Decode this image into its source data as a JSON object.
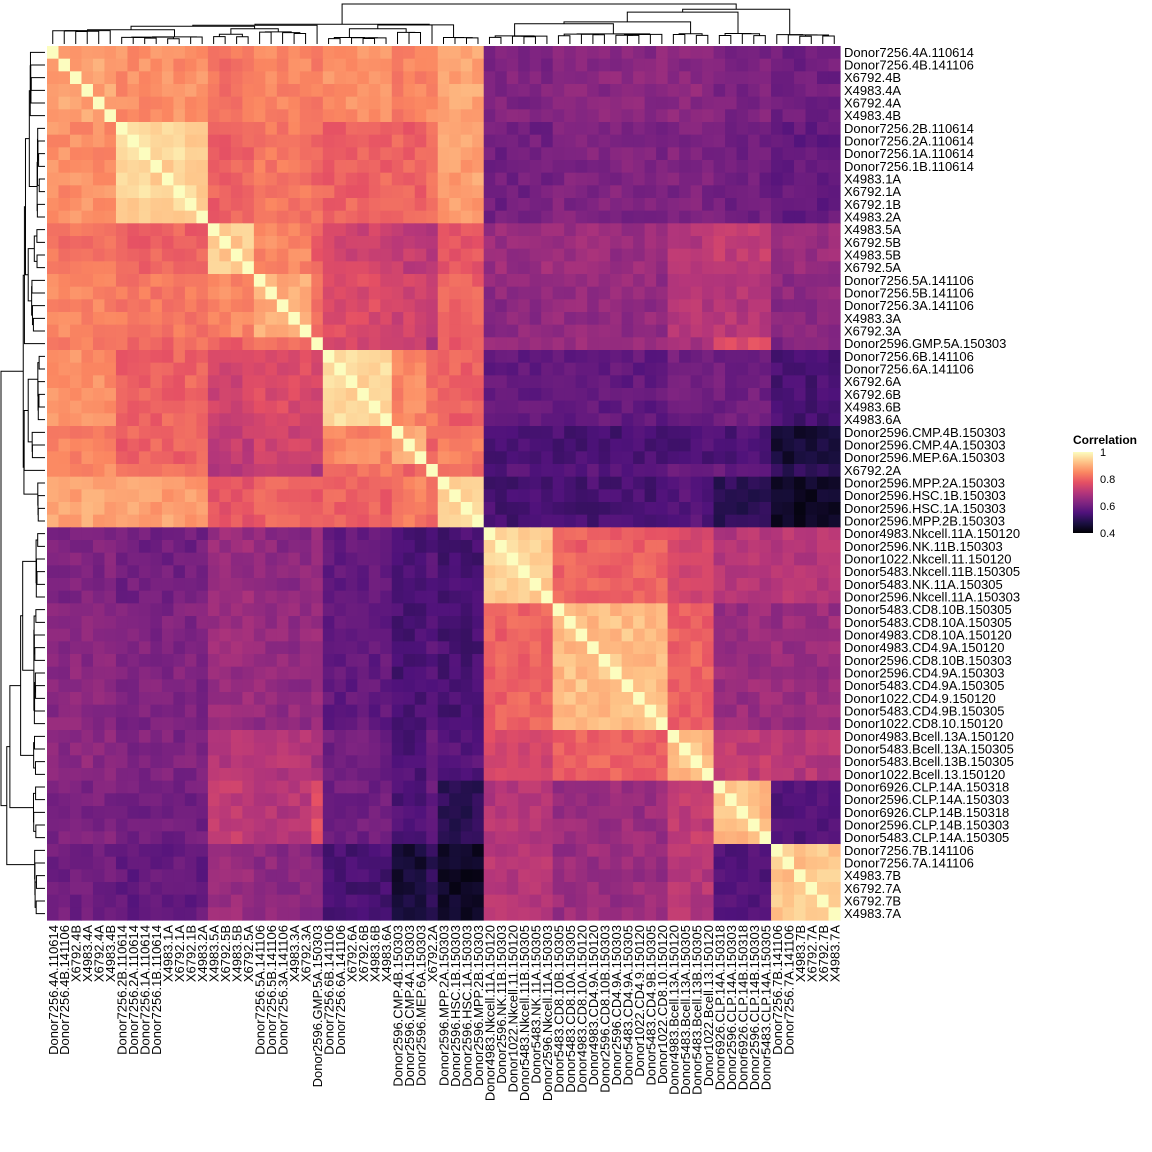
{
  "chart_data": {
    "type": "heatmap",
    "title": "",
    "xlabel": "",
    "ylabel": "",
    "labels": [
      "Donor7256.4A.110614",
      "Donor7256.4B.141106",
      "X6792.4B",
      "X4983.4A",
      "X6792.4A",
      "X4983.4B",
      "Donor7256.2B.110614",
      "Donor7256.2A.110614",
      "Donor7256.1A.110614",
      "Donor7256.1B.110614",
      "X4983.1A",
      "X6792.1A",
      "X6792.1B",
      "X4983.2A",
      "X4983.5A",
      "X6792.5B",
      "X4983.5B",
      "X6792.5A",
      "Donor7256.5A.141106",
      "Donor7256.5B.141106",
      "Donor7256.3A.141106",
      "X4983.3A",
      "X6792.3A",
      "Donor2596.GMP.5A.150303",
      "Donor7256.6B.141106",
      "Donor7256.6A.141106",
      "X6792.6A",
      "X6792.6B",
      "X4983.6B",
      "X4983.6A",
      "Donor2596.CMP.4B.150303",
      "Donor2596.CMP.4A.150303",
      "Donor2596.MEP.6A.150303",
      "X6792.2A",
      "Donor2596.MPP.2A.150303",
      "Donor2596.HSC.1B.150303",
      "Donor2596.HSC.1A.150303",
      "Donor2596.MPP.2B.150303",
      "Donor4983.Nkcell.11A.150120",
      "Donor2596.NK.11B.150303",
      "Donor1022.Nkcell.11.150120",
      "Donor5483.Nkcell.11B.150305",
      "Donor5483.NK.11A.150305",
      "Donor2596.Nkcell.11A.150303",
      "Donor5483.CD8.10B.150305",
      "Donor5483.CD8.10A.150305",
      "Donor4983.CD8.10A.150120",
      "Donor4983.CD4.9A.150120",
      "Donor2596.CD8.10B.150303",
      "Donor2596.CD4.9A.150303",
      "Donor5483.CD4.9A.150305",
      "Donor1022.CD4.9.150120",
      "Donor5483.CD4.9B.150305",
      "Donor1022.CD8.10.150120",
      "Donor4983.Bcell.13A.150120",
      "Donor5483.Bcell.13A.150305",
      "Donor5483.Bcell.13B.150305",
      "Donor1022.Bcell.13.150120",
      "Donor6926.CLP.14A.150318",
      "Donor2596.CLP.14A.150303",
      "Donor6926.CLP.14B.150318",
      "Donor2596.CLP.14B.150303",
      "Donor5483.CLP.14A.150305",
      "Donor7256.7B.141106",
      "Donor7256.7A.141106",
      "X4983.7B",
      "X6792.7A",
      "X6792.7B",
      "X4983.7A"
    ],
    "groups": [
      {
        "start": 0,
        "end": 5,
        "within": 0.89
      },
      {
        "start": 6,
        "end": 13,
        "within": 0.95
      },
      {
        "start": 14,
        "end": 17,
        "within": 0.93
      },
      {
        "start": 18,
        "end": 22,
        "within": 0.9
      },
      {
        "start": 23,
        "end": 23,
        "within": 0.9
      },
      {
        "start": 24,
        "end": 29,
        "within": 0.95
      },
      {
        "start": 30,
        "end": 32,
        "within": 0.9
      },
      {
        "start": 33,
        "end": 33,
        "within": 0.9
      },
      {
        "start": 34,
        "end": 37,
        "within": 0.95
      },
      {
        "start": 38,
        "end": 43,
        "within": 0.94
      },
      {
        "start": 44,
        "end": 53,
        "within": 0.92
      },
      {
        "start": 54,
        "end": 57,
        "within": 0.92
      },
      {
        "start": 58,
        "end": 62,
        "within": 0.92
      },
      {
        "start": 63,
        "end": 68,
        "within": 0.93
      }
    ],
    "group_correlations": [
      [
        0,
        1,
        0.86
      ],
      [
        0,
        2,
        0.82
      ],
      [
        0,
        3,
        0.85
      ],
      [
        0,
        4,
        0.83
      ],
      [
        0,
        5,
        0.86
      ],
      [
        0,
        6,
        0.84
      ],
      [
        0,
        7,
        0.85
      ],
      [
        0,
        8,
        0.89
      ],
      [
        1,
        2,
        0.8
      ],
      [
        1,
        3,
        0.83
      ],
      [
        1,
        4,
        0.81
      ],
      [
        1,
        5,
        0.8
      ],
      [
        1,
        6,
        0.8
      ],
      [
        1,
        7,
        0.82
      ],
      [
        1,
        8,
        0.88
      ],
      [
        2,
        3,
        0.85
      ],
      [
        2,
        4,
        0.8
      ],
      [
        2,
        5,
        0.74
      ],
      [
        2,
        6,
        0.72
      ],
      [
        2,
        7,
        0.7
      ],
      [
        2,
        8,
        0.78
      ],
      [
        3,
        4,
        0.82
      ],
      [
        3,
        5,
        0.76
      ],
      [
        3,
        6,
        0.74
      ],
      [
        3,
        7,
        0.72
      ],
      [
        3,
        8,
        0.8
      ],
      [
        4,
        5,
        0.74
      ],
      [
        4,
        6,
        0.72
      ],
      [
        4,
        7,
        0.7
      ],
      [
        4,
        8,
        0.78
      ],
      [
        5,
        6,
        0.85
      ],
      [
        5,
        7,
        0.82
      ],
      [
        5,
        8,
        0.8
      ],
      [
        6,
        7,
        0.8
      ],
      [
        6,
        8,
        0.84
      ],
      [
        7,
        8,
        0.8
      ],
      [
        9,
        10,
        0.8
      ],
      [
        9,
        11,
        0.75
      ],
      [
        9,
        12,
        0.7
      ],
      [
        10,
        11,
        0.8
      ],
      [
        10,
        12,
        0.66
      ],
      [
        11,
        12,
        0.72
      ],
      [
        0,
        9,
        0.62
      ],
      [
        1,
        9,
        0.6
      ],
      [
        2,
        9,
        0.66
      ],
      [
        3,
        9,
        0.64
      ],
      [
        4,
        9,
        0.66
      ],
      [
        5,
        9,
        0.58
      ],
      [
        6,
        9,
        0.54
      ],
      [
        7,
        9,
        0.56
      ],
      [
        8,
        9,
        0.54
      ],
      [
        0,
        10,
        0.64
      ],
      [
        1,
        10,
        0.62
      ],
      [
        2,
        10,
        0.66
      ],
      [
        3,
        10,
        0.65
      ],
      [
        4,
        10,
        0.66
      ],
      [
        5,
        10,
        0.58
      ],
      [
        6,
        10,
        0.54
      ],
      [
        7,
        10,
        0.56
      ],
      [
        8,
        10,
        0.54
      ],
      [
        0,
        11,
        0.64
      ],
      [
        1,
        11,
        0.62
      ],
      [
        2,
        11,
        0.7
      ],
      [
        3,
        11,
        0.7
      ],
      [
        4,
        11,
        0.68
      ],
      [
        5,
        11,
        0.6
      ],
      [
        6,
        11,
        0.55
      ],
      [
        7,
        11,
        0.58
      ],
      [
        8,
        11,
        0.56
      ],
      [
        0,
        12,
        0.62
      ],
      [
        1,
        12,
        0.6
      ],
      [
        2,
        12,
        0.72
      ],
      [
        3,
        12,
        0.7
      ],
      [
        4,
        12,
        0.76
      ],
      [
        5,
        12,
        0.6
      ],
      [
        6,
        12,
        0.55
      ],
      [
        7,
        12,
        0.58
      ],
      [
        8,
        12,
        0.5
      ],
      [
        0,
        13,
        0.6
      ],
      [
        1,
        13,
        0.58
      ],
      [
        2,
        13,
        0.66
      ],
      [
        3,
        13,
        0.64
      ],
      [
        4,
        13,
        0.62
      ],
      [
        5,
        13,
        0.54
      ],
      [
        6,
        13,
        0.46
      ],
      [
        7,
        13,
        0.5
      ],
      [
        8,
        13,
        0.44
      ],
      [
        9,
        13,
        0.7
      ],
      [
        10,
        13,
        0.66
      ],
      [
        11,
        13,
        0.7
      ],
      [
        12,
        13,
        0.56
      ]
    ],
    "color_scale": {
      "name": "Correlation",
      "min": 0.4,
      "max": 1,
      "ticks": [
        "1",
        "0.8",
        "0.6",
        "0.4"
      ],
      "colors": [
        "#000004",
        "#1c1044",
        "#4f127b",
        "#812581",
        "#b5367a",
        "#e55064",
        "#fb8761",
        "#fec287",
        "#fcfdbf"
      ]
    },
    "dendrograms": [
      "top",
      "left"
    ],
    "legend_position": "right"
  }
}
